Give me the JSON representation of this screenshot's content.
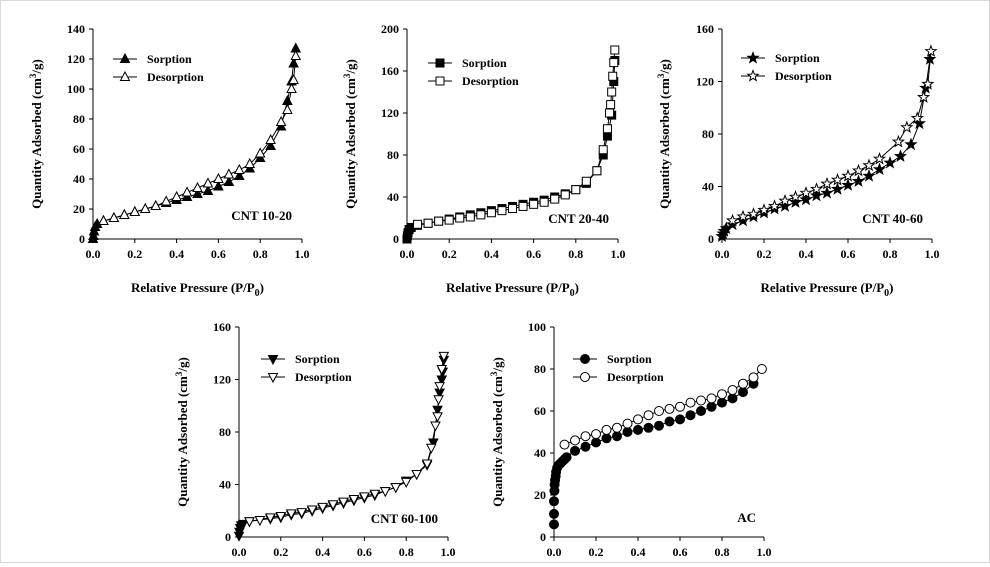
{
  "chart_data": [
    {
      "type": "line",
      "panel_label": "CNT 10-20",
      "xlabel": "Relative Pressure (P/P",
      "xlabel_sub": "0",
      "xlabel_end": ")",
      "ylabel": "Quantity Adsorbed (cm",
      "ylabel_sup": "3",
      "ylabel_end": "/g)",
      "xlim": [
        0,
        1.0
      ],
      "ylim": [
        0,
        140
      ],
      "xticks": [
        "0.0",
        "0.2",
        "0.4",
        "0.6",
        "0.8",
        "1.0"
      ],
      "yticks": [
        "0",
        "20",
        "40",
        "60",
        "80",
        "100",
        "120",
        "140"
      ],
      "legend_position": "top-left",
      "series": [
        {
          "name": "Sorption",
          "marker": "triangle-up",
          "filled": true,
          "x": [
            0.0,
            0.002,
            0.005,
            0.01,
            0.02,
            0.05,
            0.1,
            0.15,
            0.2,
            0.25,
            0.3,
            0.35,
            0.4,
            0.45,
            0.5,
            0.55,
            0.6,
            0.65,
            0.7,
            0.75,
            0.8,
            0.85,
            0.9,
            0.93,
            0.95,
            0.96,
            0.97
          ],
          "y": [
            0,
            2,
            5,
            8,
            10,
            12,
            14,
            16,
            18,
            20,
            22,
            24,
            26,
            28,
            30,
            32,
            35,
            38,
            42,
            47,
            54,
            62,
            75,
            92,
            105,
            117,
            127
          ]
        },
        {
          "name": "Desorption",
          "marker": "triangle-up",
          "filled": false,
          "x": [
            0.97,
            0.96,
            0.95,
            0.93,
            0.9,
            0.85,
            0.8,
            0.75,
            0.7,
            0.65,
            0.6,
            0.55,
            0.5,
            0.45,
            0.4,
            0.35,
            0.3,
            0.25,
            0.2,
            0.15,
            0.1,
            0.05
          ],
          "y": [
            122,
            106,
            100,
            86,
            78,
            66,
            57,
            50,
            46,
            43,
            40,
            37,
            34,
            31,
            28,
            25,
            22,
            20,
            18,
            16,
            14,
            12
          ]
        }
      ]
    },
    {
      "type": "line",
      "panel_label": "CNT 20-40",
      "xlabel": "Relative Pressure (P/P",
      "xlabel_sub": "0",
      "xlabel_end": ")",
      "ylabel": "Quantity Adsorbed (cm",
      "ylabel_sup": "3",
      "ylabel_end": "/g)",
      "xlim": [
        0,
        1.0
      ],
      "ylim": [
        0,
        200
      ],
      "xticks": [
        "0.0",
        "0.2",
        "0.4",
        "0.6",
        "0.8",
        "1.0"
      ],
      "yticks": [
        "0",
        "40",
        "80",
        "120",
        "160",
        "200"
      ],
      "legend_position": "top-left",
      "series": [
        {
          "name": "Sorption",
          "marker": "square",
          "filled": true,
          "x": [
            0.0,
            0.002,
            0.005,
            0.01,
            0.02,
            0.05,
            0.1,
            0.15,
            0.2,
            0.25,
            0.3,
            0.35,
            0.4,
            0.45,
            0.5,
            0.55,
            0.6,
            0.65,
            0.7,
            0.75,
            0.8,
            0.85,
            0.9,
            0.93,
            0.95,
            0.97,
            0.98,
            0.985
          ],
          "y": [
            0,
            3,
            6,
            9,
            11,
            13,
            15,
            17,
            19,
            21,
            23,
            25,
            27,
            29,
            31,
            33,
            35,
            37,
            40,
            43,
            47,
            53,
            65,
            80,
            98,
            118,
            150,
            170
          ]
        },
        {
          "name": "Desorption",
          "marker": "square",
          "filled": false,
          "x": [
            0.985,
            0.98,
            0.975,
            0.97,
            0.965,
            0.96,
            0.95,
            0.93,
            0.9,
            0.85,
            0.8,
            0.75,
            0.7,
            0.65,
            0.6,
            0.55,
            0.5,
            0.45,
            0.4,
            0.35,
            0.3,
            0.25,
            0.2,
            0.15,
            0.1,
            0.05
          ],
          "y": [
            180,
            168,
            155,
            140,
            128,
            120,
            105,
            85,
            65,
            55,
            47,
            42,
            38,
            35,
            33,
            31,
            29,
            27,
            25,
            23,
            21,
            20,
            18,
            17,
            15,
            14
          ]
        }
      ]
    },
    {
      "type": "line",
      "panel_label": "CNT 40-60",
      "xlabel": "Relative Pressure (P/P",
      "xlabel_sub": "0",
      "xlabel_end": ")",
      "ylabel": "Quantity Adsorbed (cm",
      "ylabel_sup": "3",
      "ylabel_end": "/g)",
      "xlim": [
        0,
        1.0
      ],
      "ylim": [
        0,
        160
      ],
      "xticks": [
        "0.0",
        "0.2",
        "0.4",
        "0.6",
        "0.8",
        "1.0"
      ],
      "yticks": [
        "0",
        "40",
        "80",
        "120",
        "160"
      ],
      "legend_position": "top-left",
      "series": [
        {
          "name": "Sorption",
          "marker": "star",
          "filled": true,
          "x": [
            0.0,
            0.005,
            0.01,
            0.02,
            0.05,
            0.1,
            0.15,
            0.2,
            0.25,
            0.3,
            0.35,
            0.4,
            0.45,
            0.5,
            0.55,
            0.6,
            0.65,
            0.7,
            0.75,
            0.8,
            0.85,
            0.9,
            0.94,
            0.97,
            0.99
          ],
          "y": [
            2,
            4,
            6,
            8,
            11,
            14,
            17,
            20,
            23,
            25,
            28,
            30,
            33,
            35,
            38,
            41,
            44,
            48,
            53,
            58,
            63,
            72,
            88,
            115,
            137
          ]
        },
        {
          "name": "Desorption",
          "marker": "star",
          "filled": false,
          "x": [
            0.995,
            0.98,
            0.96,
            0.93,
            0.88,
            0.84,
            0.75,
            0.7,
            0.65,
            0.6,
            0.55,
            0.5,
            0.45,
            0.4,
            0.35,
            0.3,
            0.25,
            0.2,
            0.15,
            0.1,
            0.05
          ],
          "y": [
            143,
            118,
            108,
            92,
            85,
            74,
            61,
            56,
            52,
            48,
            45,
            42,
            38,
            35,
            32,
            29,
            25,
            22,
            19,
            17,
            14
          ]
        }
      ]
    },
    {
      "type": "line",
      "panel_label": "CNT 60-100",
      "xlabel": "",
      "ylabel": "Quantity Adsorbed (cm",
      "ylabel_sup": "3",
      "ylabel_end": "/g)",
      "xlim": [
        0,
        1.0
      ],
      "ylim": [
        0,
        160
      ],
      "xticks": [
        "0.0",
        "0.2",
        "0.4",
        "0.6",
        "0.8",
        "1.0"
      ],
      "yticks": [
        "0",
        "40",
        "80",
        "120",
        "160"
      ],
      "legend_position": "top-left",
      "series": [
        {
          "name": "Sorption",
          "marker": "triangle-down",
          "filled": true,
          "x": [
            0.0,
            0.002,
            0.005,
            0.01,
            0.02,
            0.05,
            0.1,
            0.15,
            0.2,
            0.25,
            0.3,
            0.35,
            0.4,
            0.45,
            0.5,
            0.55,
            0.6,
            0.65,
            0.7,
            0.75,
            0.8,
            0.85,
            0.9,
            0.93,
            0.95,
            0.96,
            0.97,
            0.975,
            0.98
          ],
          "y": [
            1,
            4,
            7,
            9,
            10,
            12,
            13,
            14,
            15,
            17,
            18,
            20,
            22,
            24,
            26,
            28,
            30,
            32,
            35,
            38,
            43,
            48,
            55,
            72,
            97,
            110,
            120,
            126,
            135
          ]
        },
        {
          "name": "Desorption",
          "marker": "triangle-down",
          "filled": false,
          "x": [
            0.98,
            0.97,
            0.96,
            0.955,
            0.95,
            0.94,
            0.92,
            0.9,
            0.85,
            0.8,
            0.75,
            0.7,
            0.65,
            0.6,
            0.55,
            0.5,
            0.45,
            0.4,
            0.35,
            0.3,
            0.25,
            0.2,
            0.15,
            0.1,
            0.05
          ],
          "y": [
            138,
            128,
            115,
            105,
            92,
            85,
            68,
            56,
            48,
            42,
            38,
            35,
            33,
            31,
            29,
            27,
            25,
            23,
            21,
            19,
            18,
            16,
            15,
            13,
            12
          ]
        }
      ]
    },
    {
      "type": "line",
      "panel_label": "AC",
      "xlabel": "",
      "ylabel": "Quantity Adsorbed (cm",
      "ylabel_sup": "3",
      "ylabel_end": "/g)",
      "xlim": [
        0,
        1.0
      ],
      "ylim": [
        0,
        100
      ],
      "xticks": [
        "0.0",
        "0.2",
        "0.4",
        "0.6",
        "0.8",
        "1.0"
      ],
      "yticks": [
        "0",
        "20",
        "40",
        "60",
        "80",
        "100"
      ],
      "legend_position": "top-left",
      "series": [
        {
          "name": "Sorption",
          "marker": "circle",
          "filled": true,
          "x": [
            0.0,
            0.0,
            0.0,
            0.002,
            0.003,
            0.005,
            0.008,
            0.01,
            0.015,
            0.02,
            0.03,
            0.04,
            0.05,
            0.06,
            0.1,
            0.15,
            0.2,
            0.25,
            0.3,
            0.35,
            0.4,
            0.45,
            0.5,
            0.55,
            0.6,
            0.65,
            0.7,
            0.75,
            0.8,
            0.85,
            0.9,
            0.95
          ],
          "y": [
            6,
            11,
            17,
            22,
            25,
            27,
            29,
            31,
            33,
            34,
            35,
            36,
            37,
            38,
            41,
            43,
            45,
            47,
            48,
            50,
            51,
            52,
            53,
            55,
            56,
            58,
            60,
            62,
            64,
            66,
            69,
            73
          ]
        },
        {
          "name": "Desorption",
          "marker": "circle",
          "filled": false,
          "x": [
            0.99,
            0.95,
            0.9,
            0.85,
            0.8,
            0.75,
            0.7,
            0.65,
            0.6,
            0.55,
            0.5,
            0.45,
            0.4,
            0.35,
            0.3,
            0.25,
            0.2,
            0.15,
            0.1,
            0.05
          ],
          "y": [
            80,
            76,
            73,
            70,
            68,
            66,
            65,
            64,
            62,
            61,
            60,
            58,
            56,
            54,
            52,
            51,
            49,
            48,
            46,
            44
          ]
        }
      ]
    }
  ]
}
